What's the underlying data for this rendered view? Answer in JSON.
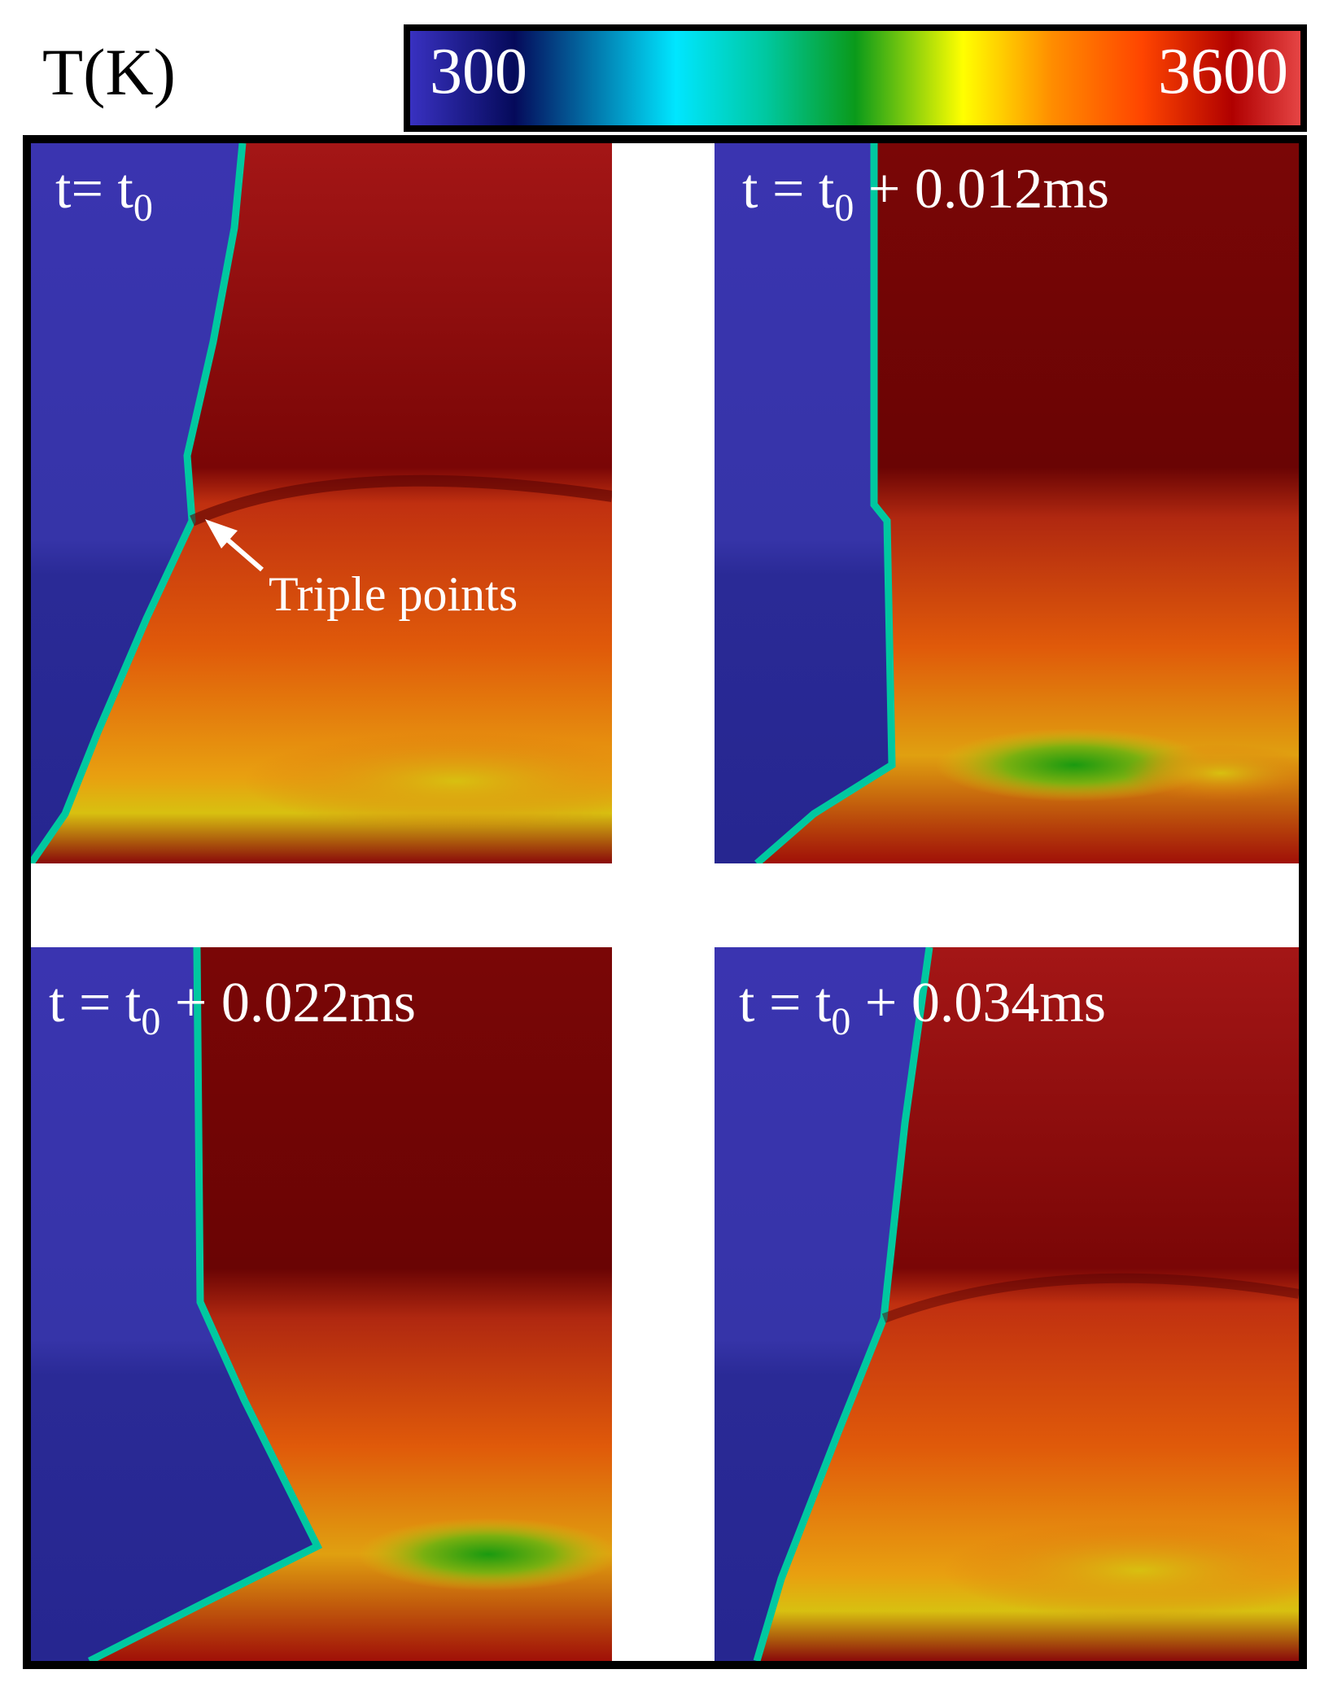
{
  "colorbar": {
    "title": "T(K)",
    "min_label": "300",
    "max_label": "3600",
    "stops": [
      "#3a32c4",
      "#050a5a",
      "#00e6ff",
      "#00c8a0",
      "#0a9a1a",
      "#ffff00",
      "#ff8c00",
      "#ff4500",
      "#b00000",
      "#e84848"
    ]
  },
  "panels": [
    {
      "label_main": "t= t",
      "label_sub": "0",
      "label_rest": ""
    },
    {
      "label_main": "t = t",
      "label_sub": "0",
      "label_rest": " + 0.012ms"
    },
    {
      "label_main": "t = t",
      "label_sub": "0",
      "label_rest": " + 0.022ms"
    },
    {
      "label_main": "t = t",
      "label_sub": "0",
      "label_rest": " + 0.034ms"
    }
  ],
  "annotation": {
    "text": "Triple points"
  },
  "colors": {
    "unburned": "#3a34b0",
    "hot_dark": "#6e0404",
    "hot_mid": "#a81818",
    "orange": "#e05a0a",
    "yellow": "#d8c010",
    "green": "#3a9a10"
  }
}
